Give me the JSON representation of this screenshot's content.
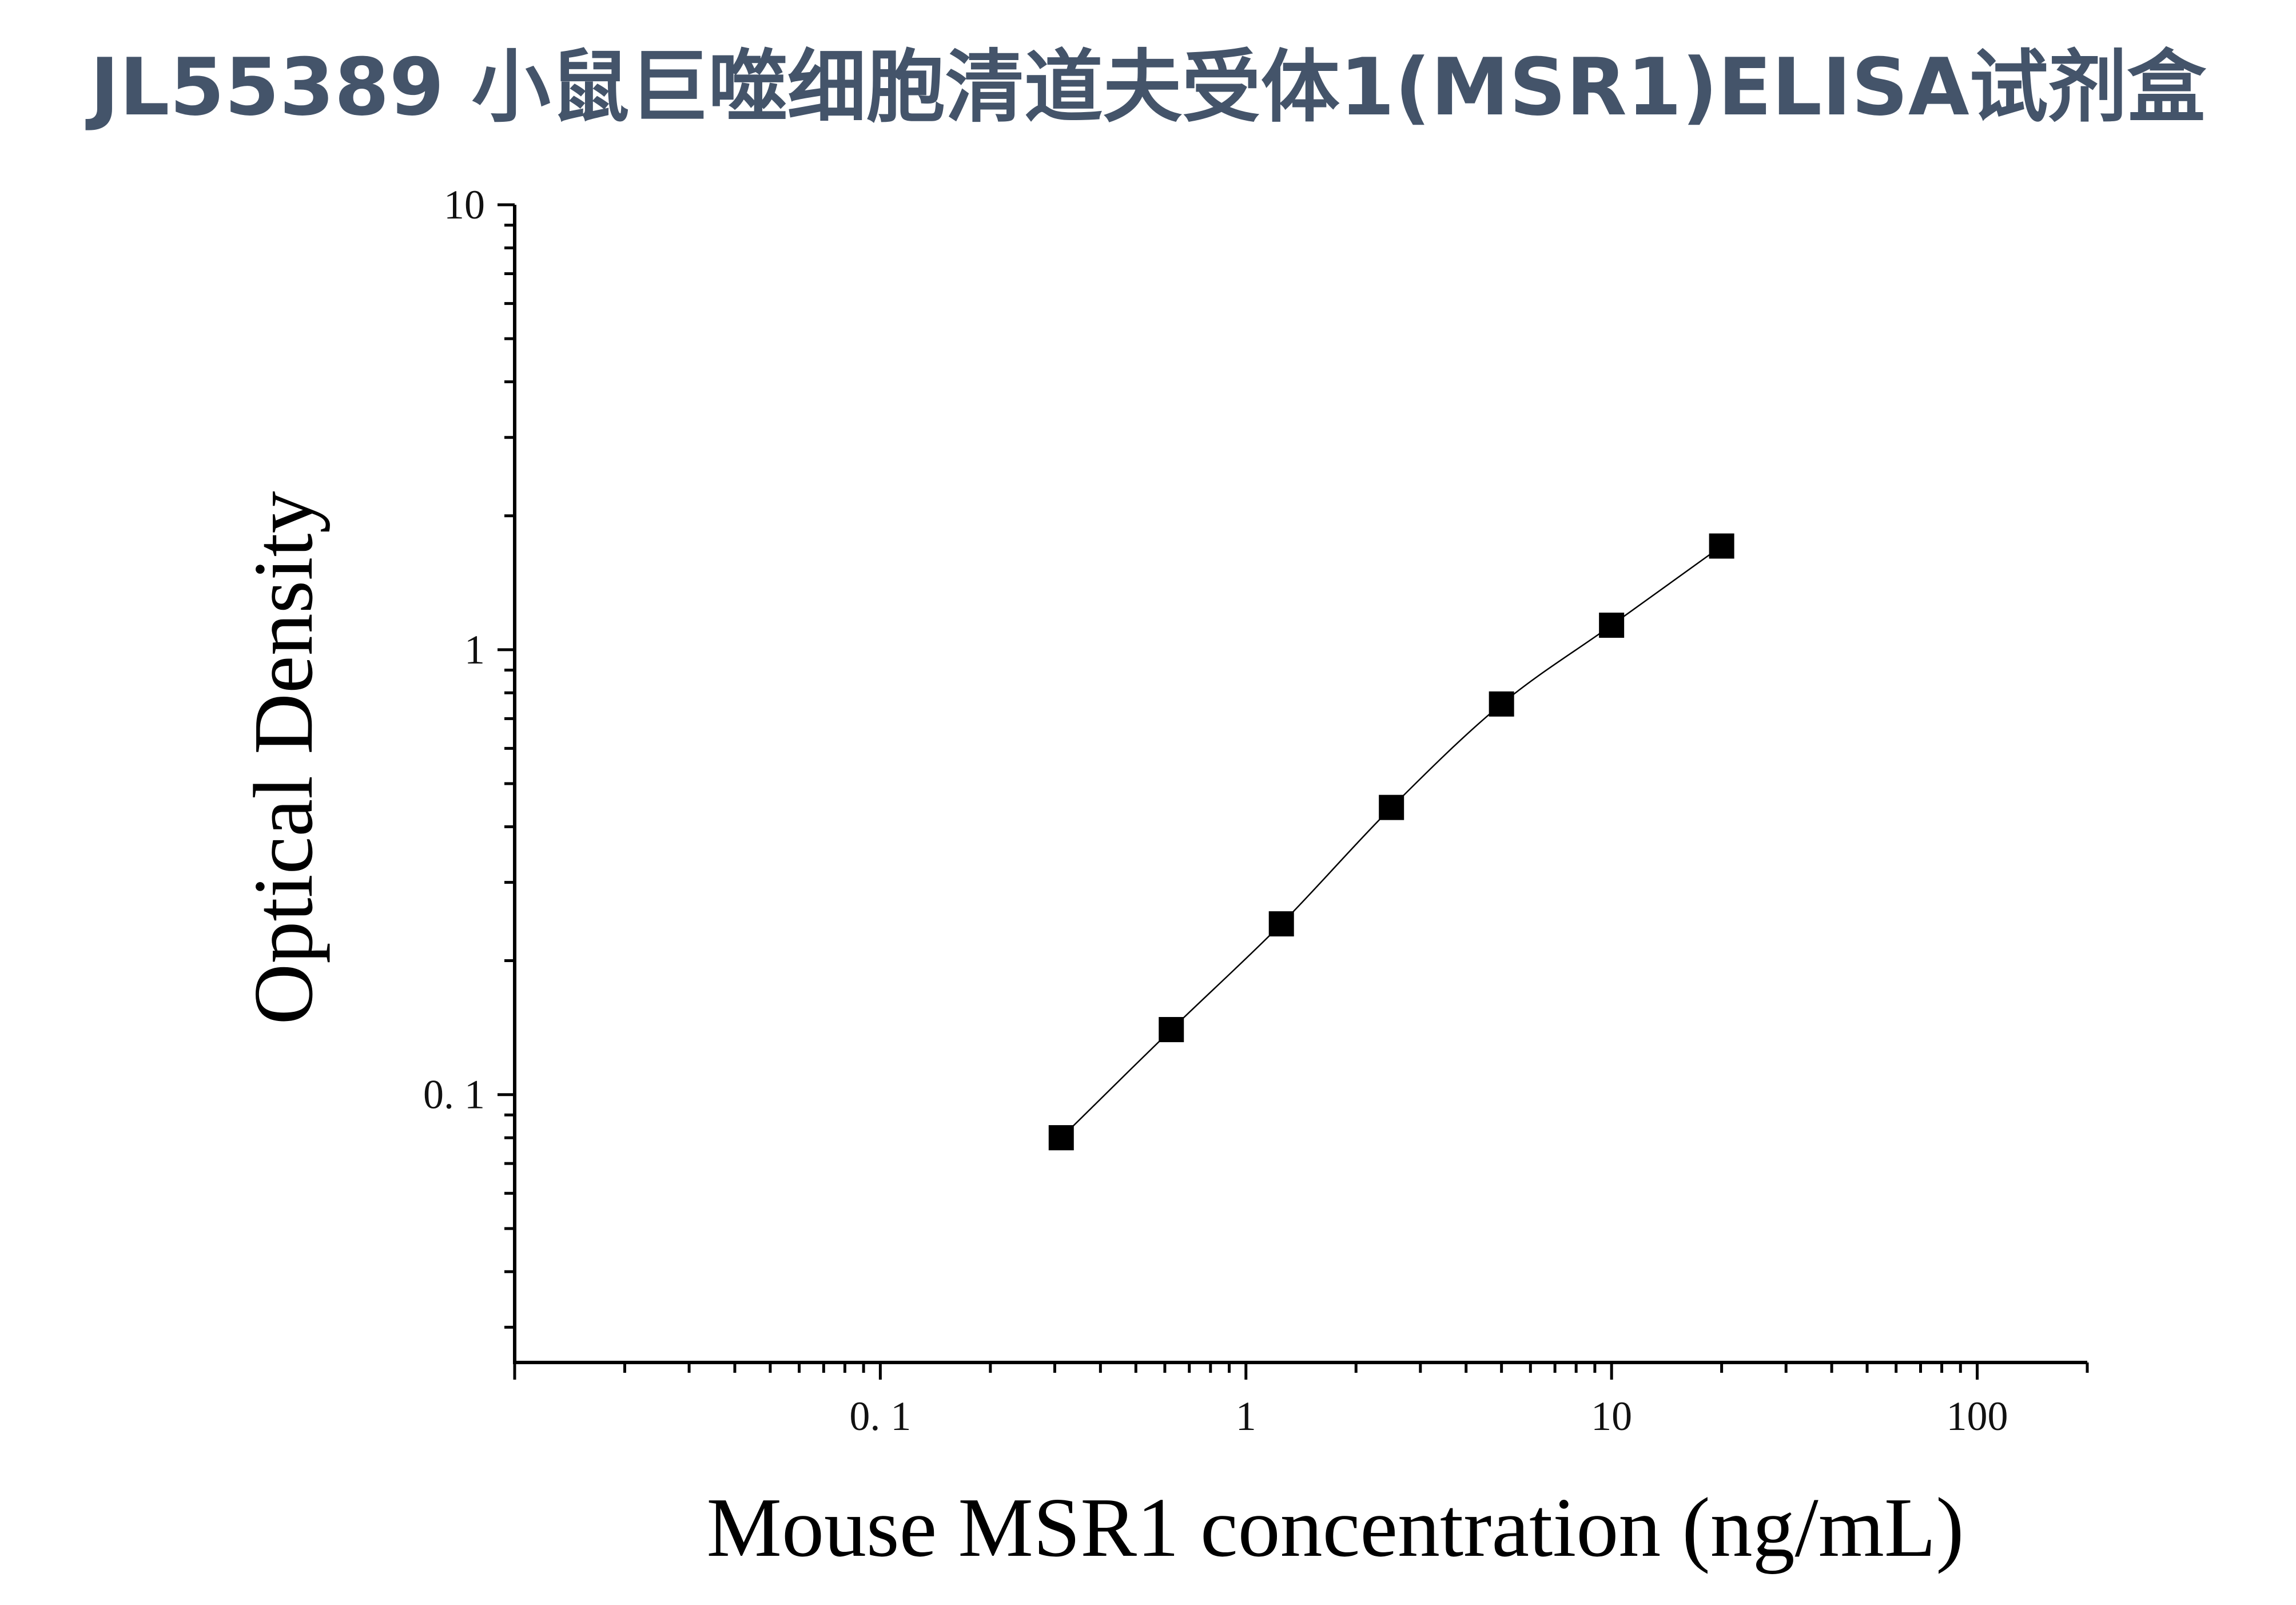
{
  "page": {
    "title": "JL55389 小鼠巨噬细胞清道夫受体1(MSR1)ELISA试剂盒"
  },
  "chart_data": {
    "type": "scatter",
    "title": "JL55389 小鼠巨噬细胞清道夫受体1(MSR1)ELISA试剂盒",
    "xlabel": "Mouse MSR1 concentration (ng/mL)",
    "ylabel": "Optical Density",
    "x_scale": "log",
    "y_scale": "log",
    "xlim": [
      0.01,
      200
    ],
    "ylim": [
      0.025,
      10
    ],
    "x_ticks": [
      0.1,
      1,
      10,
      100
    ],
    "x_tick_labels": [
      "0. 1",
      "1",
      "10",
      "100"
    ],
    "y_ticks": [
      0.1,
      1,
      10
    ],
    "y_tick_labels": [
      "0. 1",
      "1",
      "10"
    ],
    "grid": false,
    "marker": "square",
    "marker_color": "#000000",
    "line_color": "#000000",
    "fit_line": true,
    "series": [
      {
        "x": [
          0.3125,
          0.625,
          1.25,
          2.5,
          5,
          10,
          20
        ],
        "y": [
          0.08,
          0.14,
          0.242,
          0.442,
          0.755,
          1.135,
          1.71
        ]
      }
    ]
  }
}
